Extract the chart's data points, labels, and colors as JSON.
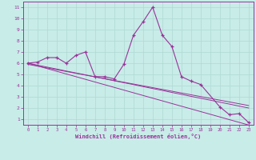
{
  "x": [
    0,
    1,
    2,
    3,
    4,
    5,
    6,
    7,
    8,
    9,
    10,
    11,
    12,
    13,
    14,
    15,
    16,
    17,
    18,
    19,
    20,
    21,
    22,
    23
  ],
  "line_main": [
    6.0,
    6.1,
    6.5,
    6.5,
    6.0,
    6.7,
    7.0,
    4.8,
    4.8,
    4.6,
    5.9,
    8.5,
    9.7,
    11.0,
    8.5,
    7.5,
    4.8,
    4.4,
    4.1,
    null,
    2.1,
    1.4,
    1.5,
    0.7
  ],
  "line2": [
    6.0,
    5.76,
    5.52,
    5.28,
    5.04,
    4.8,
    4.56,
    4.32,
    4.08,
    3.84,
    3.6,
    3.36,
    3.12,
    2.88,
    2.64,
    2.4,
    2.16,
    1.92,
    1.68,
    1.44,
    1.2,
    0.96,
    0.72,
    0.48
  ],
  "line3": [
    6.0,
    5.83,
    5.65,
    5.48,
    5.3,
    5.13,
    4.96,
    4.78,
    4.61,
    4.43,
    4.26,
    4.09,
    3.91,
    3.74,
    3.57,
    3.39,
    3.22,
    3.04,
    2.87,
    2.7,
    2.52,
    2.35,
    2.17,
    2.0
  ],
  "line4": [
    5.9,
    5.74,
    5.58,
    5.42,
    5.26,
    5.1,
    4.94,
    4.78,
    4.62,
    4.46,
    4.3,
    4.14,
    3.98,
    3.82,
    3.66,
    3.5,
    3.34,
    3.18,
    3.02,
    2.86,
    2.7,
    2.54,
    2.38,
    2.22
  ],
  "bg_color": "#c8ece8",
  "line_color": "#993399",
  "grid_color": "#b0d8d4",
  "xlabel": "Windchill (Refroidissement éolien,°C)",
  "xlim": [
    -0.5,
    23.5
  ],
  "ylim": [
    0.5,
    11.5
  ],
  "yticks": [
    1,
    2,
    3,
    4,
    5,
    6,
    7,
    8,
    9,
    10,
    11
  ],
  "xticks": [
    0,
    1,
    2,
    3,
    4,
    5,
    6,
    7,
    8,
    9,
    10,
    11,
    12,
    13,
    14,
    15,
    16,
    17,
    18,
    19,
    20,
    21,
    22,
    23
  ],
  "figsize": [
    3.2,
    2.0
  ],
  "dpi": 100
}
